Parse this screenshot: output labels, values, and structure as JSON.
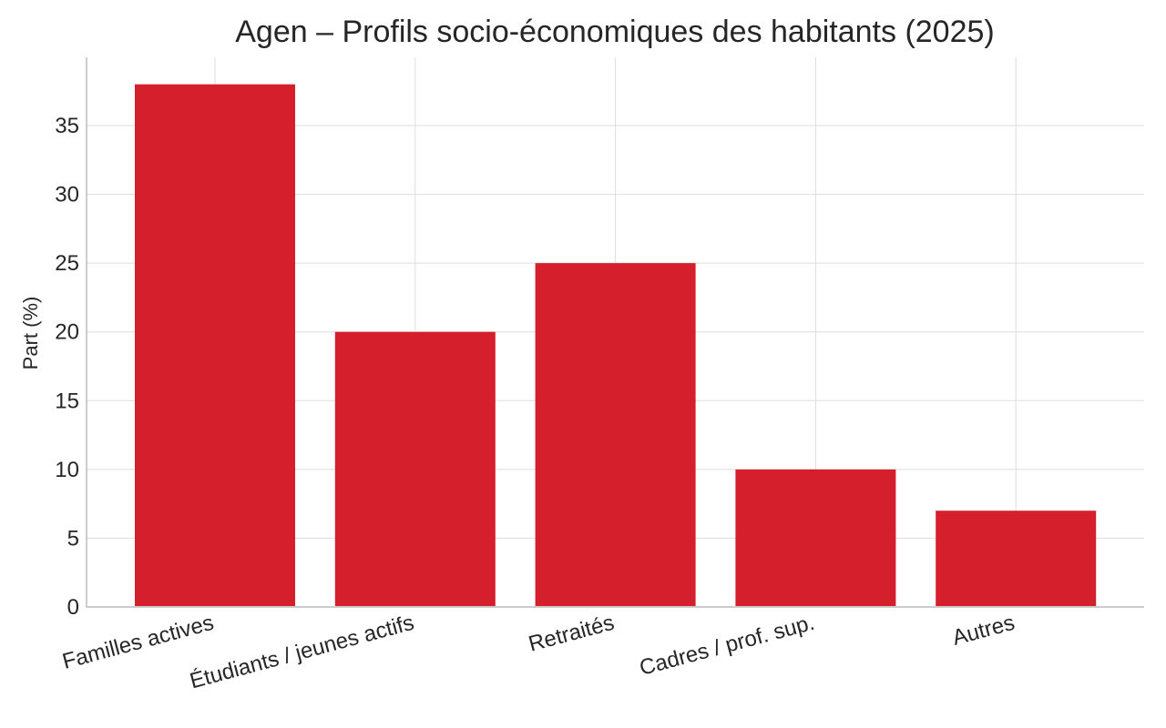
{
  "chart_data": {
    "type": "bar",
    "title": "Agen – Profils socio-économiques des habitants (2025)",
    "xlabel": "",
    "ylabel": "Part (%)",
    "categories": [
      "Familles actives",
      "Étudiants / jeunes actifs",
      "Retraités",
      "Cadres / prof. sup.",
      "Autres"
    ],
    "values": [
      38,
      20,
      25,
      10,
      7
    ],
    "ylim": [
      0,
      40
    ],
    "yticks": [
      0,
      5,
      10,
      15,
      20,
      25,
      30,
      35
    ],
    "grid": true,
    "bar_color": "#d61f2c",
    "legend": null
  }
}
